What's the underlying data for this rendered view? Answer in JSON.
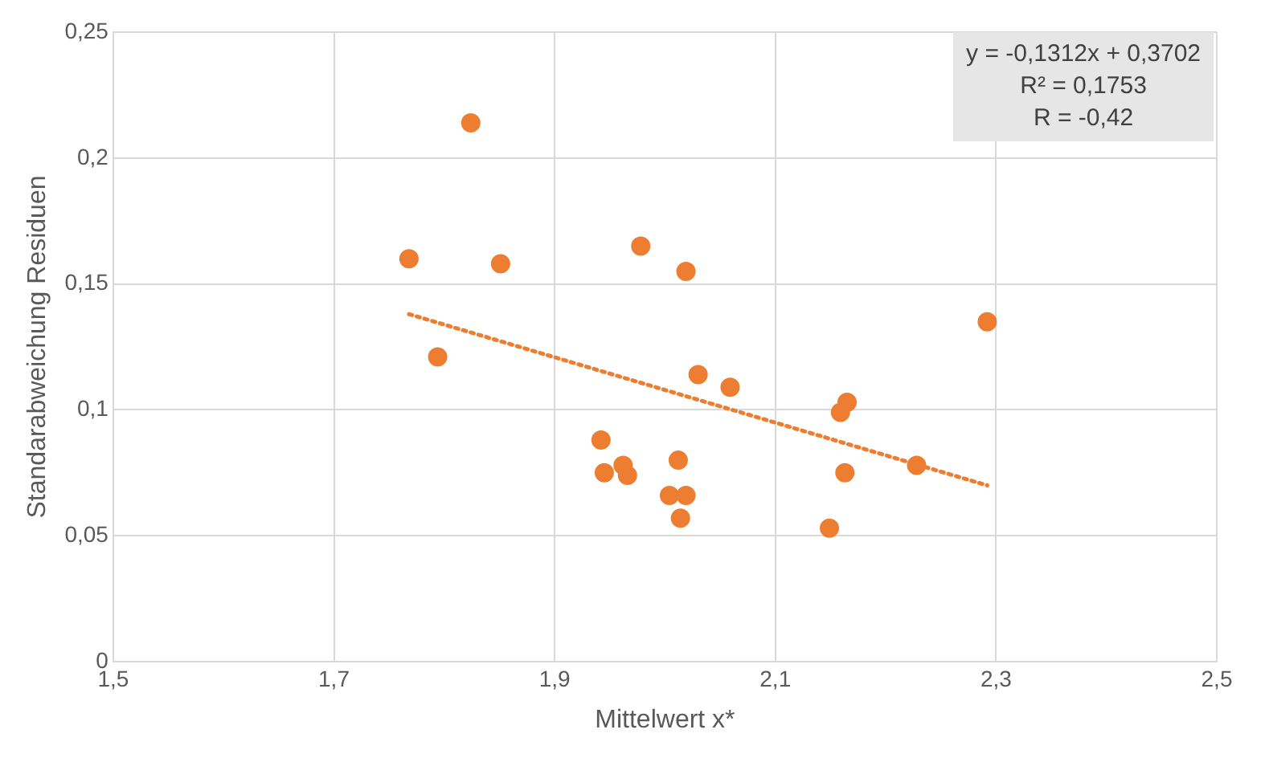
{
  "chart_data": {
    "type": "scatter",
    "xlabel": "Mittelwert x*",
    "ylabel": "Standarabweichung Residuen",
    "xlim": [
      1.5,
      2.5
    ],
    "ylim": [
      0,
      0.25
    ],
    "xticks": [
      {
        "value": 1.5,
        "label": "1,5"
      },
      {
        "value": 1.7,
        "label": "1,7"
      },
      {
        "value": 1.9,
        "label": "1,9"
      },
      {
        "value": 2.1,
        "label": "2,1"
      },
      {
        "value": 2.3,
        "label": "2,3"
      },
      {
        "value": 2.5,
        "label": "2,5"
      }
    ],
    "yticks": [
      0,
      {
        "value": 0.05,
        "label": "0,05"
      },
      {
        "value": 0.1,
        "label": "0,1"
      },
      {
        "value": 0.15,
        "label": "0,15"
      },
      {
        "value": 0.2,
        "label": "0,2"
      },
      {
        "value": 0.25,
        "label": "0,25"
      }
    ],
    "grid": true,
    "legend": false,
    "marker": "circle",
    "annotations": [
      "y = -0,1312x + 0,3702",
      "R² = 0,1753",
      "R = -0,42"
    ],
    "series": [
      {
        "type": "scatter",
        "color": "#ed7d31",
        "x": [
          1.768,
          1.824,
          1.851,
          1.794,
          1.978,
          2.019,
          2.03,
          2.059,
          1.942,
          1.945,
          1.962,
          1.966,
          2.012,
          2.004,
          2.019,
          2.014,
          2.149,
          2.165,
          2.159,
          2.163,
          2.228,
          2.292
        ],
        "values": [
          0.16,
          0.214,
          0.158,
          0.121,
          0.165,
          0.155,
          0.114,
          0.109,
          0.088,
          0.075,
          0.078,
          0.074,
          0.08,
          0.066,
          0.066,
          0.057,
          0.053,
          0.103,
          0.099,
          0.075,
          0.078,
          0.135
        ]
      },
      {
        "type": "line",
        "color": "#ed7d31",
        "line_style": "dotted",
        "marker": "none",
        "x": [
          1.768,
          2.292
        ],
        "values": [
          0.138,
          0.07
        ]
      }
    ]
  }
}
